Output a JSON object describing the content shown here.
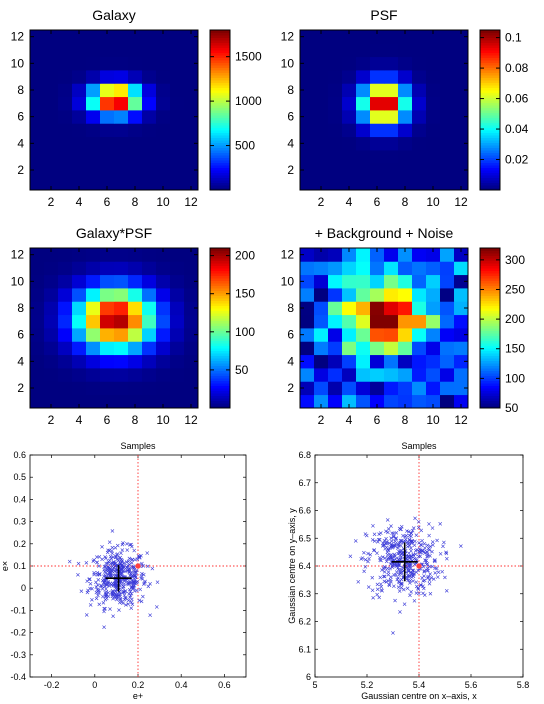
{
  "chart_data": [
    {
      "type": "heatmap",
      "title": "Galaxy",
      "xticks": [
        "2",
        "4",
        "6",
        "8",
        "10",
        "12"
      ],
      "yticks": [
        "2",
        "4",
        "6",
        "8",
        "10",
        "12"
      ],
      "colorbar_ticks": [
        {
          "value": 500,
          "label": "500"
        },
        {
          "value": 1000,
          "label": "1000"
        },
        {
          "value": 1500,
          "label": "1500"
        }
      ],
      "color_range": [
        0,
        1800
      ],
      "center": [
        6.6,
        7.3
      ],
      "peak": 1800,
      "base": 0,
      "noise": 0,
      "sx": 1.2,
      "sy": 0.8
    },
    {
      "type": "heatmap",
      "title": "PSF",
      "xticks": [
        "2",
        "4",
        "6",
        "8",
        "10",
        "12"
      ],
      "yticks": [
        "2",
        "4",
        "6",
        "8",
        "10",
        "12"
      ],
      "colorbar_ticks": [
        {
          "value": 0.02,
          "label": "0.02"
        },
        {
          "value": 0.04,
          "label": "0.04"
        },
        {
          "value": 0.06,
          "label": "0.06"
        },
        {
          "value": 0.08,
          "label": "0.08"
        },
        {
          "value": 0.1,
          "label": "0.1"
        }
      ],
      "color_range": [
        0,
        0.105
      ],
      "center": [
        6.5,
        7.0
      ],
      "peak": 0.105,
      "base": 0,
      "noise": 0,
      "sx": 1.1,
      "sy": 1.1
    },
    {
      "type": "heatmap",
      "title": "Galaxy*PSF",
      "xticks": [
        "2",
        "4",
        "6",
        "8",
        "10",
        "12"
      ],
      "yticks": [
        "2",
        "4",
        "6",
        "8",
        "10",
        "12"
      ],
      "colorbar_ticks": [
        {
          "value": 50,
          "label": "50"
        },
        {
          "value": 100,
          "label": "100"
        },
        {
          "value": 150,
          "label": "150"
        },
        {
          "value": 200,
          "label": "200"
        }
      ],
      "color_range": [
        0,
        210
      ],
      "center": [
        6.6,
        7.2
      ],
      "peak": 205,
      "base": 0,
      "noise": 0,
      "sx": 1.9,
      "sy": 1.6
    },
    {
      "type": "heatmap",
      "title": "+ Background + Noise",
      "xticks": [
        "2",
        "4",
        "6",
        "8",
        "10",
        "12"
      ],
      "yticks": [
        "2",
        "4",
        "6",
        "8",
        "10",
        "12"
      ],
      "colorbar_ticks": [
        {
          "value": 50,
          "label": "50"
        },
        {
          "value": 100,
          "label": "100"
        },
        {
          "value": 150,
          "label": "150"
        },
        {
          "value": 200,
          "label": "200"
        },
        {
          "value": 250,
          "label": "250"
        },
        {
          "value": 300,
          "label": "300"
        }
      ],
      "color_range": [
        50,
        320
      ],
      "center": [
        6.7,
        7.4
      ],
      "peak": 220,
      "base": 95,
      "noise": 28,
      "sx": 2.0,
      "sy": 1.7
    },
    {
      "type": "scatter",
      "title": "Samples",
      "xlabel": "e+",
      "ylabel": "e×",
      "xlim": [
        -0.3,
        0.7
      ],
      "ylim": [
        -0.4,
        0.6
      ],
      "xticks": [
        "-0.2",
        "0",
        "0.2",
        "0.4",
        "0.6"
      ],
      "yticks": [
        "-0.4",
        "-0.3",
        "-0.2",
        "-0.1",
        "0",
        "0.1",
        "0.2",
        "0.3",
        "0.4",
        "0.5",
        "0.6"
      ],
      "sample_mean": [
        0.11,
        0.045
      ],
      "sample_sd": [
        0.065,
        0.065
      ],
      "n_samples": 420,
      "true_value": [
        0.2,
        0.1
      ],
      "reference_lines": {
        "x": 0.2,
        "y": 0.1
      },
      "cross_center": [
        0.11,
        0.045
      ],
      "cross_half_extent": [
        0.06,
        0.06
      ],
      "colors": {
        "samples": "#3a3ad8",
        "true_value": "#ff4040",
        "reference": "#ff3030",
        "cross": "#000000"
      }
    },
    {
      "type": "scatter",
      "title": "Samples",
      "xlabel": "Gaussian centre on x–axis, x",
      "ylabel": "Gaussian centre on y–axis, y",
      "xlim": [
        5,
        5.8
      ],
      "ylim": [
        6,
        6.8
      ],
      "xticks": [
        "5",
        "5.2",
        "5.4",
        "5.6",
        "5.8"
      ],
      "yticks": [
        "6",
        "6.1",
        "6.2",
        "6.3",
        "6.4",
        "6.5",
        "6.6",
        "6.7",
        "6.8"
      ],
      "sample_mean": [
        5.34,
        6.42
      ],
      "sample_sd": [
        0.07,
        0.065
      ],
      "n_samples": 420,
      "true_value": [
        5.4,
        6.4
      ],
      "reference_lines": {
        "x": 5.4,
        "y": 6.4
      },
      "cross_center": [
        5.345,
        6.415
      ],
      "cross_half_extent": [
        0.05,
        0.07
      ],
      "colors": {
        "samples": "#3a3ad8",
        "true_value": "#ff4040",
        "reference": "#ff3030",
        "cross": "#000000"
      }
    }
  ]
}
